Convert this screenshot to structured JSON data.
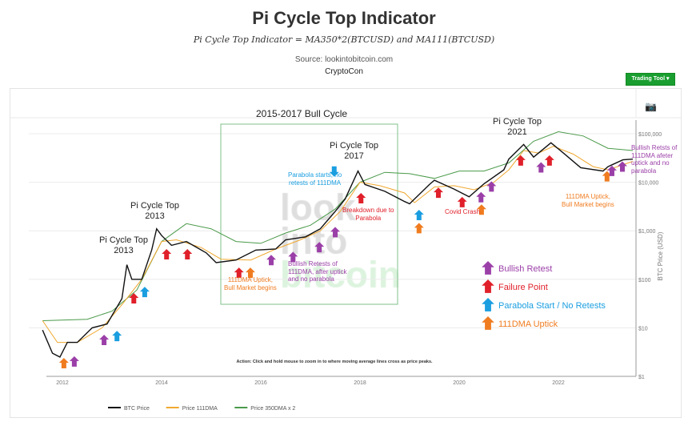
{
  "header": {
    "title": "Pi Cycle Top Indicator",
    "formula": "Pi Cycle Top Indicator = MA350*2(BTCUSD) and MA111(BTCUSD)",
    "source": "Source: lookintobitcoin.com",
    "author": "CryptoCon",
    "trading_tool": "Trading Tool ▾"
  },
  "toolbar": {
    "camera_icon": "camera-icon"
  },
  "colors": {
    "btc": "#111111",
    "dma111": "#f0a830",
    "dma350x2": "#4a9a4a",
    "bullish": "#9b3fa8",
    "failure": "#e0202a",
    "parabola": "#1a9ee0",
    "uptick": "#f07c20",
    "trading_tool": "#1a9e30"
  },
  "watermark": [
    "look",
    "into",
    "bitcoin"
  ],
  "annotations": {
    "bull_cycle": "2015-2017 Bull Cycle",
    "top2013a": "Pi Cycle Top\n2013",
    "top2013b": "Pi Cycle Top\n2013",
    "top2017": "Pi Cycle Top\n2017",
    "top2021": "Pi Cycle Top\n2021",
    "parabola": "Parabola starts, no\nretests of 111DMA",
    "breakdown": "Breakdown due to\nParabola",
    "bullish_retests": "Bullish Retests of\n111DMA, after uptick\nand no parabola",
    "uptick2015": "111DMA Uptick,\nBull Market begins",
    "covid": "Covid Crash",
    "uptick2023": "111DMA Uptick,\nBull Market begins",
    "bullish2023": "Bullish Retsts of\n111DMA afeter\nuptick and no\nparabola",
    "action": "Action: Click and hold mouse to zoom in to where moving average lines cross as price peaks."
  },
  "key": [
    {
      "type": "bullish",
      "label": "Bullish Retest"
    },
    {
      "type": "failure",
      "label": "Failure Point"
    },
    {
      "type": "parabola",
      "label": "Parabola Start / No Retests"
    },
    {
      "type": "uptick",
      "label": "111DMA Uptick"
    }
  ],
  "chart_data": {
    "type": "line",
    "ylabel": "BTC Price (USD)",
    "yscale": "log",
    "ylim": [
      1,
      100000
    ],
    "xlim": [
      2011.4,
      2023.7
    ],
    "x_ticks": [
      "2012",
      "2014",
      "2016",
      "2018",
      "2020",
      "2022"
    ],
    "y_ticks": [
      "$1",
      "$10",
      "$100",
      "$1,000",
      "$10,000",
      "$100,000"
    ],
    "legend_position": "bottom",
    "series": [
      {
        "name": "BTC Price",
        "points": [
          [
            2011.6,
            9
          ],
          [
            2011.8,
            3
          ],
          [
            2011.95,
            2.5
          ],
          [
            2012.1,
            5
          ],
          [
            2012.3,
            5
          ],
          [
            2012.6,
            10
          ],
          [
            2012.9,
            12
          ],
          [
            2013.2,
            40
          ],
          [
            2013.3,
            200
          ],
          [
            2013.4,
            100
          ],
          [
            2013.6,
            100
          ],
          [
            2013.8,
            400
          ],
          [
            2013.9,
            1100
          ],
          [
            2014.0,
            800
          ],
          [
            2014.2,
            500
          ],
          [
            2014.5,
            600
          ],
          [
            2014.9,
            350
          ],
          [
            2015.1,
            220
          ],
          [
            2015.5,
            250
          ],
          [
            2015.9,
            400
          ],
          [
            2016.3,
            420
          ],
          [
            2016.5,
            650
          ],
          [
            2016.9,
            750
          ],
          [
            2017.2,
            1100
          ],
          [
            2017.5,
            2500
          ],
          [
            2017.7,
            4500
          ],
          [
            2017.96,
            17000
          ],
          [
            2018.1,
            9000
          ],
          [
            2018.5,
            6500
          ],
          [
            2018.9,
            4000
          ],
          [
            2019.0,
            3600
          ],
          [
            2019.4,
            9000
          ],
          [
            2019.5,
            11000
          ],
          [
            2019.9,
            7200
          ],
          [
            2020.2,
            5000
          ],
          [
            2020.5,
            9300
          ],
          [
            2020.9,
            18000
          ],
          [
            2021.0,
            30000
          ],
          [
            2021.3,
            60000
          ],
          [
            2021.5,
            33000
          ],
          [
            2021.85,
            65000
          ],
          [
            2022.1,
            40000
          ],
          [
            2022.45,
            20000
          ],
          [
            2022.9,
            17000
          ],
          [
            2023.0,
            21000
          ],
          [
            2023.3,
            29000
          ],
          [
            2023.5,
            30000
          ]
        ]
      },
      {
        "name": "Price 111DMA",
        "points": [
          [
            2011.6,
            14
          ],
          [
            2011.9,
            5
          ],
          [
            2012.3,
            5
          ],
          [
            2012.8,
            10
          ],
          [
            2013.2,
            30
          ],
          [
            2013.6,
            100
          ],
          [
            2014.0,
            600
          ],
          [
            2014.3,
            650
          ],
          [
            2014.8,
            450
          ],
          [
            2015.2,
            260
          ],
          [
            2015.8,
            250
          ],
          [
            2016.3,
            420
          ],
          [
            2016.8,
            650
          ],
          [
            2017.2,
            1000
          ],
          [
            2017.6,
            2500
          ],
          [
            2018.0,
            10000
          ],
          [
            2018.4,
            8500
          ],
          [
            2018.9,
            6000
          ],
          [
            2019.1,
            3800
          ],
          [
            2019.5,
            8000
          ],
          [
            2019.9,
            8500
          ],
          [
            2020.3,
            7000
          ],
          [
            2020.7,
            10000
          ],
          [
            2021.0,
            18000
          ],
          [
            2021.3,
            45000
          ],
          [
            2021.6,
            40000
          ],
          [
            2021.9,
            55000
          ],
          [
            2022.3,
            38000
          ],
          [
            2022.7,
            21000
          ],
          [
            2023.0,
            18000
          ],
          [
            2023.5,
            27000
          ]
        ]
      },
      {
        "name": "Price 350DMA x 2",
        "points": [
          [
            2011.6,
            14
          ],
          [
            2012.5,
            15
          ],
          [
            2013.0,
            22
          ],
          [
            2013.5,
            60
          ],
          [
            2014.0,
            600
          ],
          [
            2014.5,
            1400
          ],
          [
            2015.0,
            1100
          ],
          [
            2015.5,
            600
          ],
          [
            2016.0,
            550
          ],
          [
            2016.5,
            900
          ],
          [
            2017.0,
            1300
          ],
          [
            2017.5,
            2800
          ],
          [
            2018.0,
            10000
          ],
          [
            2018.5,
            16000
          ],
          [
            2019.0,
            15000
          ],
          [
            2019.5,
            12000
          ],
          [
            2020.0,
            17000
          ],
          [
            2020.5,
            17000
          ],
          [
            2021.0,
            25000
          ],
          [
            2021.5,
            70000
          ],
          [
            2022.0,
            110000
          ],
          [
            2022.5,
            90000
          ],
          [
            2023.0,
            50000
          ],
          [
            2023.5,
            45000
          ]
        ]
      }
    ],
    "arrows": [
      {
        "type": "uptick",
        "x": 2012.03,
        "y": 2.4
      },
      {
        "type": "bullish",
        "x": 2012.24,
        "y": 2.6
      },
      {
        "type": "bullish",
        "x": 2012.84,
        "y": 7.2
      },
      {
        "type": "parabola",
        "x": 2013.1,
        "y": 8.7
      },
      {
        "type": "failure",
        "x": 2013.44,
        "y": 52
      },
      {
        "type": "parabola",
        "x": 2013.66,
        "y": 70
      },
      {
        "type": "failure",
        "x": 2014.1,
        "y": 420
      },
      {
        "type": "failure",
        "x": 2014.52,
        "y": 420
      },
      {
        "type": "failure",
        "x": 2015.56,
        "y": 175
      },
      {
        "type": "uptick",
        "x": 2015.79,
        "y": 175
      },
      {
        "type": "bullish",
        "x": 2016.21,
        "y": 320
      },
      {
        "type": "bullish",
        "x": 2016.65,
        "y": 370
      },
      {
        "type": "bullish",
        "x": 2017.18,
        "y": 590
      },
      {
        "type": "bullish",
        "x": 2017.5,
        "y": 1200
      },
      {
        "type": "parabola",
        "x": 2017.48,
        "y": 13000,
        "dir": "down"
      },
      {
        "type": "failure",
        "x": 2018.02,
        "y": 6000
      },
      {
        "type": "parabola",
        "x": 2019.19,
        "y": 2700
      },
      {
        "type": "uptick",
        "x": 2019.19,
        "y": 1450
      },
      {
        "type": "failure",
        "x": 2019.58,
        "y": 7800
      },
      {
        "type": "failure",
        "x": 2020.06,
        "y": 5000
      },
      {
        "type": "bullish",
        "x": 2020.44,
        "y": 6300
      },
      {
        "type": "uptick",
        "x": 2020.45,
        "y": 3500
      },
      {
        "type": "bullish",
        "x": 2020.65,
        "y": 10500
      },
      {
        "type": "failure",
        "x": 2021.24,
        "y": 36000
      },
      {
        "type": "bullish",
        "x": 2021.65,
        "y": 26000
      },
      {
        "type": "failure",
        "x": 2021.82,
        "y": 36000
      },
      {
        "type": "uptick",
        "x": 2022.98,
        "y": 17000
      },
      {
        "type": "bullish",
        "x": 2023.08,
        "y": 22000
      },
      {
        "type": "bullish",
        "x": 2023.29,
        "y": 27000
      }
    ]
  }
}
